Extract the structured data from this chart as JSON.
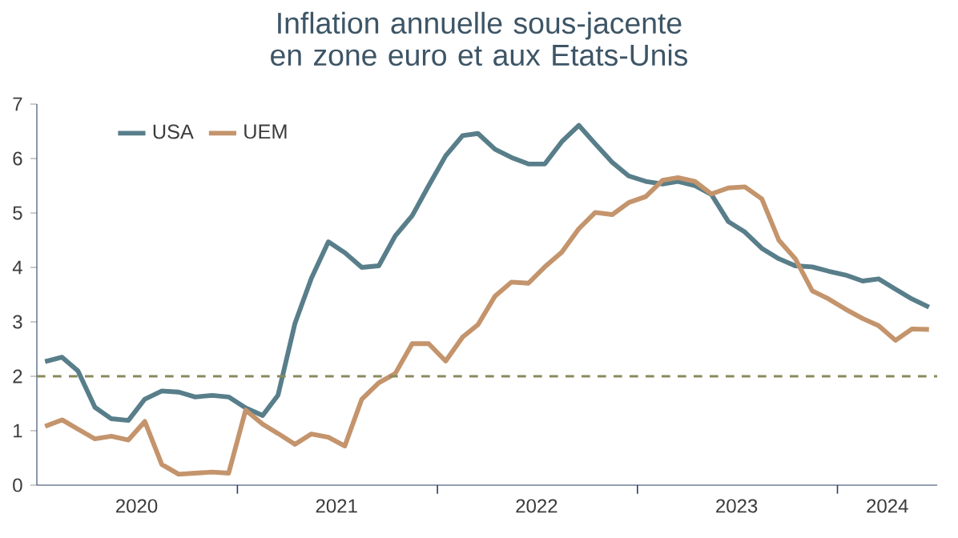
{
  "chart_data": {
    "type": "line",
    "title": "Inflation annuelle sous-jacente en zone euro et aux Etats-Unis",
    "x": [
      "2020-01-16",
      "2020-02-16",
      "2020-03-16",
      "2020-04-16",
      "2020-05-16",
      "2020-06-16",
      "2020-07-16",
      "2020-08-16",
      "2020-09-16",
      "2020-10-16",
      "2020-11-16",
      "2020-12-16",
      "2021-01-16",
      "2021-02-16",
      "2021-03-16",
      "2021-04-16",
      "2021-05-16",
      "2021-06-16",
      "2021-07-16",
      "2021-08-16",
      "2021-09-16",
      "2021-10-16",
      "2021-11-16",
      "2021-12-16",
      "2022-01-16",
      "2022-02-16",
      "2022-03-16",
      "2022-04-16",
      "2022-05-16",
      "2022-06-16",
      "2022-07-16",
      "2022-08-16",
      "2022-09-16",
      "2022-10-16",
      "2022-11-16",
      "2022-12-16",
      "2023-01-16",
      "2023-02-16",
      "2023-03-16",
      "2023-04-16",
      "2023-05-16",
      "2023-06-16",
      "2023-07-16",
      "2023-08-16",
      "2023-09-16",
      "2023-10-16",
      "2023-11-16",
      "2023-12-16",
      "2024-01-16",
      "2024-02-16",
      "2024-03-16",
      "2024-04-16",
      "2024-05-16",
      "2024-06-16"
    ],
    "series": [
      {
        "name": "USA",
        "color": "#587e8a",
        "values": [
          2.27,
          2.35,
          2.1,
          1.43,
          1.22,
          1.19,
          1.58,
          1.73,
          1.71,
          1.62,
          1.65,
          1.62,
          1.42,
          1.28,
          1.65,
          2.97,
          3.8,
          4.47,
          4.27,
          4.0,
          4.03,
          4.58,
          4.95,
          5.5,
          6.05,
          6.42,
          6.46,
          6.17,
          6.02,
          5.9,
          5.9,
          6.31,
          6.61,
          6.27,
          5.93,
          5.68,
          5.58,
          5.53,
          5.58,
          5.5,
          5.34,
          4.84,
          4.65,
          4.35,
          4.16,
          4.03,
          4.01,
          3.93,
          3.86,
          3.75,
          3.79,
          3.6,
          3.42,
          3.27
        ]
      },
      {
        "name": "UEM",
        "color": "#c4946c",
        "values": [
          1.08,
          1.2,
          1.03,
          0.85,
          0.9,
          0.83,
          1.17,
          0.38,
          0.2,
          0.22,
          0.24,
          0.22,
          1.38,
          1.12,
          0.95,
          0.75,
          0.94,
          0.88,
          0.72,
          1.58,
          1.88,
          2.05,
          2.6,
          2.6,
          2.28,
          2.72,
          2.95,
          3.47,
          3.73,
          3.71,
          4.01,
          4.28,
          4.71,
          5.01,
          4.97,
          5.19,
          5.3,
          5.6,
          5.65,
          5.58,
          5.35,
          5.46,
          5.48,
          5.26,
          4.5,
          4.16,
          3.57,
          3.42,
          3.23,
          3.06,
          2.93,
          2.66,
          2.87,
          2.86
        ]
      }
    ],
    "xlim": [
      "2020-01-01",
      "2024-07-01"
    ],
    "xticks": [
      {
        "value": "2020-07-01",
        "label": "2020"
      },
      {
        "value": "2021-01-01",
        "label": null
      },
      {
        "value": "2021-07-01",
        "label": "2021"
      },
      {
        "value": "2022-01-01",
        "label": null
      },
      {
        "value": "2022-07-01",
        "label": "2022"
      },
      {
        "value": "2023-01-01",
        "label": null
      },
      {
        "value": "2023-07-01",
        "label": "2023"
      },
      {
        "value": "2024-01-01",
        "label": null
      },
      {
        "value": "2024-04-01",
        "label": "2024"
      }
    ],
    "ylim": [
      0,
      7
    ],
    "yticks": [
      0,
      1,
      2,
      3,
      4,
      5,
      6,
      7
    ],
    "ref_lines": [
      {
        "axis": "y",
        "value": 2,
        "color": "#8b8a5c",
        "line_style": "dashed"
      }
    ],
    "legend": "top left",
    "grid": false,
    "marker": "none",
    "line_style": "solid"
  }
}
